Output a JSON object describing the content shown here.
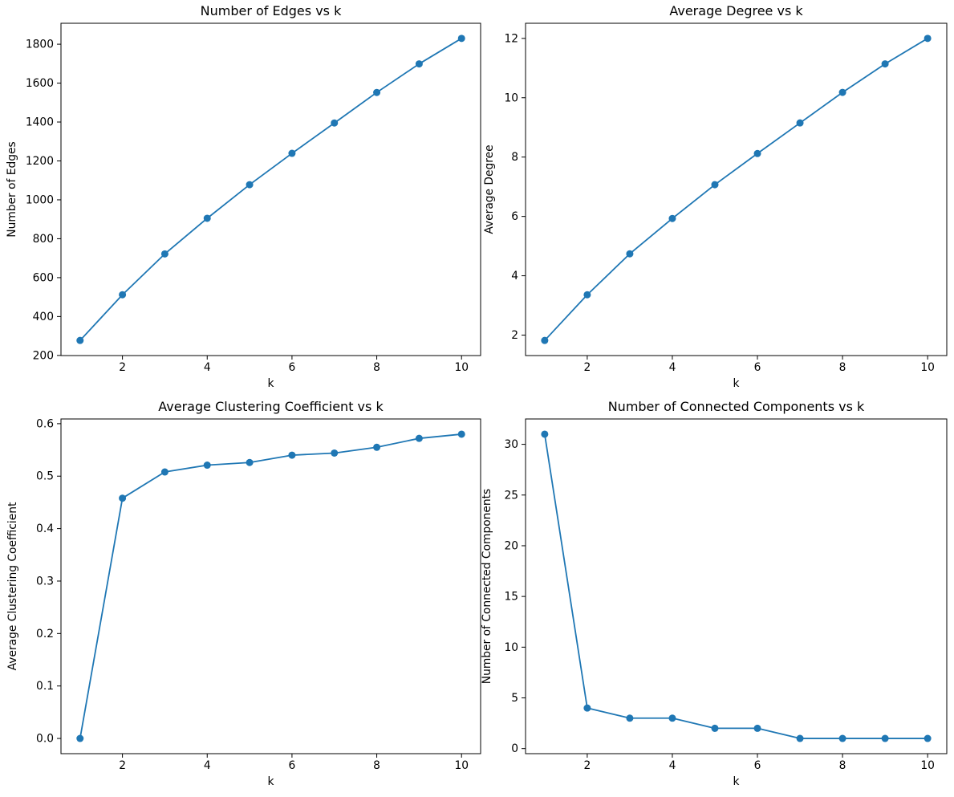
{
  "figure": {
    "background": "#ffffff",
    "text_color": "#000000",
    "spine_color": "#000000",
    "accent_color": "#1f77b4"
  },
  "chart_data": [
    {
      "id": "edges",
      "type": "line",
      "title": "Number of Edges vs k",
      "xlabel": "k",
      "ylabel": "Number of Edges",
      "x": [
        1,
        2,
        3,
        4,
        5,
        6,
        7,
        8,
        9,
        10
      ],
      "y": [
        277,
        512,
        722,
        905,
        1078,
        1239,
        1395,
        1552,
        1699,
        1830
      ],
      "xlim": [
        0.55,
        10.45
      ],
      "ylim": [
        199.35,
        1907.65
      ],
      "xticks": [
        2,
        4,
        6,
        8,
        10
      ],
      "xtick_labels": [
        "2",
        "4",
        "6",
        "8",
        "10"
      ],
      "yticks": [
        200,
        400,
        600,
        800,
        1000,
        1200,
        1400,
        1600,
        1800
      ],
      "ytick_labels": [
        "200",
        "400",
        "600",
        "800",
        "1000",
        "1200",
        "1400",
        "1600",
        "1800"
      ],
      "line_color": "#1f77b4",
      "marker": "o",
      "grid": false,
      "legend": null
    },
    {
      "id": "avg-degree",
      "type": "line",
      "title": "Average Degree vs k",
      "xlabel": "k",
      "ylabel": "Average Degree",
      "x": [
        1,
        2,
        3,
        4,
        5,
        6,
        7,
        8,
        9,
        10
      ],
      "y": [
        1.82,
        3.36,
        4.74,
        5.93,
        7.07,
        8.12,
        9.15,
        10.18,
        11.14,
        12.0
      ],
      "xlim": [
        0.55,
        10.45
      ],
      "ylim": [
        1.311,
        12.509
      ],
      "xticks": [
        2,
        4,
        6,
        8,
        10
      ],
      "xtick_labels": [
        "2",
        "4",
        "6",
        "8",
        "10"
      ],
      "yticks": [
        2,
        4,
        6,
        8,
        10,
        12
      ],
      "ytick_labels": [
        "2",
        "4",
        "6",
        "8",
        "10",
        "12"
      ],
      "line_color": "#1f77b4",
      "marker": "o",
      "grid": false,
      "legend": null
    },
    {
      "id": "clustering",
      "type": "line",
      "title": "Average Clustering Coefficient vs k",
      "xlabel": "k",
      "ylabel": "Average Clustering Coefficient",
      "x": [
        1,
        2,
        3,
        4,
        5,
        6,
        7,
        8,
        9,
        10
      ],
      "y": [
        0.0,
        0.458,
        0.508,
        0.521,
        0.526,
        0.54,
        0.544,
        0.555,
        0.572,
        0.58
      ],
      "xlim": [
        0.55,
        10.45
      ],
      "ylim": [
        -0.029,
        0.609
      ],
      "xticks": [
        2,
        4,
        6,
        8,
        10
      ],
      "xtick_labels": [
        "2",
        "4",
        "6",
        "8",
        "10"
      ],
      "yticks": [
        0.0,
        0.1,
        0.2,
        0.3,
        0.4,
        0.5,
        0.6
      ],
      "ytick_labels": [
        "0.0",
        "0.1",
        "0.2",
        "0.3",
        "0.4",
        "0.5",
        "0.6"
      ],
      "line_color": "#1f77b4",
      "marker": "o",
      "grid": false,
      "legend": null
    },
    {
      "id": "components",
      "type": "line",
      "title": "Number of Connected Components vs k",
      "xlabel": "k",
      "ylabel": "Number of Connected Components",
      "x": [
        1,
        2,
        3,
        4,
        5,
        6,
        7,
        8,
        9,
        10
      ],
      "y": [
        31,
        4,
        3,
        3,
        2,
        2,
        1,
        1,
        1,
        1
      ],
      "xlim": [
        0.55,
        10.45
      ],
      "ylim": [
        -0.5,
        32.5
      ],
      "xticks": [
        2,
        4,
        6,
        8,
        10
      ],
      "xtick_labels": [
        "2",
        "4",
        "6",
        "8",
        "10"
      ],
      "yticks": [
        0,
        5,
        10,
        15,
        20,
        25,
        30
      ],
      "ytick_labels": [
        "0",
        "5",
        "10",
        "15",
        "20",
        "25",
        "30"
      ],
      "line_color": "#1f77b4",
      "marker": "o",
      "grid": false,
      "legend": null
    }
  ]
}
